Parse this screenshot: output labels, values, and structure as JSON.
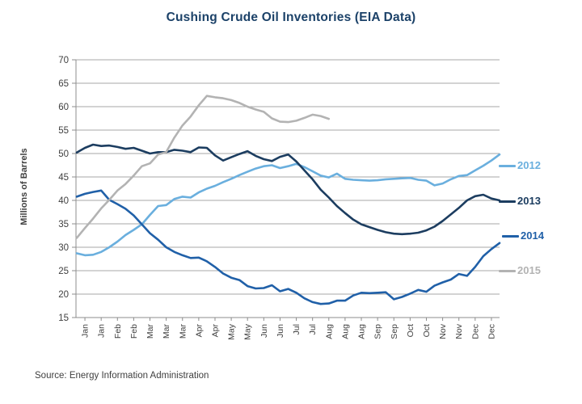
{
  "title": "Cushing Crude Oil Inventories (EIA Data)",
  "source": "Source: Energy Information Administration",
  "colors": {
    "title": "#1B4168",
    "grid": "#A7A7A7",
    "axis": "#8C8C8C",
    "tick_text": "#404040",
    "source_text": "#3F3F3F"
  },
  "chart_data": {
    "type": "line",
    "title": "Cushing Crude Oil Inventories (EIA Data)",
    "xlabel": "",
    "ylabel": "Millions of Barrels",
    "ylim": [
      15,
      70
    ],
    "ytick_step": 5,
    "grid": true,
    "legend_position": "right",
    "x_unit": "weekly, ticks every 2 weeks labeled by month",
    "x_tick_labels": [
      "Jan",
      "Jan",
      "Feb",
      "Feb",
      "Mar",
      "Mar",
      "Mar",
      "Apr",
      "Apr",
      "May",
      "May",
      "Jun",
      "Jun",
      "Jul",
      "Jul",
      "Aug",
      "Aug",
      "Aug",
      "Sep",
      "Sep",
      "Oct",
      "Oct",
      "Nov",
      "Nov",
      "Dec",
      "Dec"
    ],
    "series": [
      {
        "name": "2012",
        "color": "#6AAFDE",
        "values": [
          28.7,
          28.3,
          28.4,
          29.0,
          30.0,
          31.2,
          32.6,
          33.7,
          34.9,
          36.9,
          38.8,
          39.0,
          40.3,
          40.8,
          40.6,
          41.7,
          42.5,
          43.1,
          43.9,
          44.6,
          45.4,
          46.1,
          46.8,
          47.3,
          47.5,
          46.9,
          47.3,
          47.8,
          47.1,
          46.2,
          45.3,
          44.9,
          45.7,
          44.6,
          44.4,
          44.3,
          44.2,
          44.3,
          44.5,
          44.6,
          44.7,
          44.8,
          44.4,
          44.2,
          43.2,
          43.6,
          44.5,
          45.2,
          45.4,
          46.4,
          47.4,
          48.5,
          49.8
        ]
      },
      {
        "name": "2013",
        "color": "#1C3D60",
        "values": [
          50.2,
          51.2,
          51.9,
          51.6,
          51.7,
          51.4,
          51.0,
          51.2,
          50.6,
          50.0,
          50.3,
          50.3,
          50.8,
          50.6,
          50.3,
          51.3,
          51.2,
          49.6,
          48.5,
          49.2,
          49.9,
          50.5,
          49.5,
          48.8,
          48.4,
          49.3,
          49.8,
          48.3,
          46.4,
          44.5,
          42.3,
          40.6,
          38.8,
          37.3,
          35.9,
          34.9,
          34.3,
          33.7,
          33.2,
          32.9,
          32.8,
          32.9,
          33.1,
          33.6,
          34.4,
          35.6,
          37.0,
          38.4,
          40.0,
          40.9,
          41.2,
          40.4,
          40.0
        ]
      },
      {
        "name": "2014",
        "color": "#2060A8",
        "values": [
          40.8,
          41.4,
          41.8,
          42.1,
          40.1,
          39.2,
          38.2,
          36.8,
          34.9,
          33.0,
          31.6,
          30.0,
          29.0,
          28.3,
          27.7,
          27.8,
          27.0,
          25.8,
          24.4,
          23.5,
          23.0,
          21.7,
          21.2,
          21.3,
          21.9,
          20.6,
          21.1,
          20.3,
          19.1,
          18.3,
          17.9,
          18.0,
          18.6,
          18.6,
          19.7,
          20.3,
          20.2,
          20.3,
          20.4,
          18.9,
          19.4,
          20.1,
          20.9,
          20.5,
          21.8,
          22.5,
          23.1,
          24.3,
          23.9,
          25.8,
          28.1,
          29.6,
          30.9
        ]
      },
      {
        "name": "2015",
        "color": "#B3B3B3",
        "values": [
          32.0,
          34.1,
          36.1,
          38.3,
          40.1,
          42.1,
          43.5,
          45.3,
          47.3,
          47.9,
          49.8,
          50.3,
          53.4,
          56.0,
          57.9,
          60.3,
          62.3,
          62.0,
          61.8,
          61.4,
          60.8,
          60.0,
          59.4,
          58.9,
          57.5,
          56.8,
          56.7,
          57.0,
          57.6,
          58.3,
          58.0,
          57.4
        ]
      }
    ]
  }
}
